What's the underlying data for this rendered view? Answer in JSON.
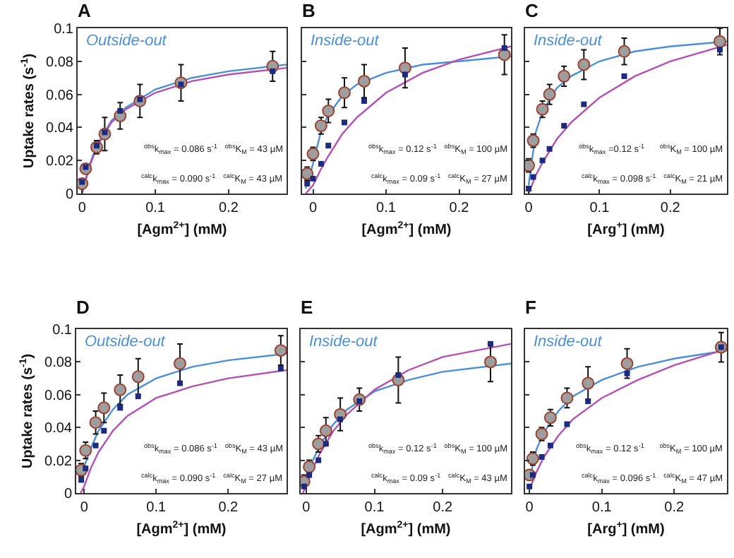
{
  "chart_data": [
    {
      "type": "scatter",
      "title": "A",
      "subtitle": "Outside-out",
      "xlabel": "[Agm$^{2+}$] (mM)",
      "ylabel": "Uptake rates (s$^{-1}$)",
      "annotations": [
        "$^{obs}$k$_{max}$ = 0.086 s$^{-1}$   $^{obs}$K$_{M}$ = 43 µM",
        "$^{calc}$k$_{max}$ = 0.090 s$^{-1}$   $^{calc}$K$_{M}$ = 43 µM"
      ],
      "xlim": [
        -0.006,
        0.279
      ],
      "ylim": [
        0,
        0.1
      ],
      "xticks": [
        0,
        0.1,
        0.2
      ],
      "yticks": [
        0,
        0.02,
        0.04,
        0.06,
        0.08,
        0.1
      ],
      "series": [
        {
          "type": "line",
          "color": "#4a90d9",
          "x": [
            0,
            0.01,
            0.02,
            0.04,
            0.06,
            0.1,
            0.15,
            0.2,
            0.279
          ],
          "values": [
            0,
            0.017,
            0.029,
            0.044,
            0.052,
            0.063,
            0.07,
            0.074,
            0.078
          ]
        },
        {
          "type": "line",
          "color": "#b44fb4",
          "x": [
            0,
            0.01,
            0.02,
            0.04,
            0.06,
            0.1,
            0.15,
            0.2,
            0.279
          ],
          "values": [
            0,
            0.016,
            0.028,
            0.043,
            0.051,
            0.061,
            0.068,
            0.072,
            0.076
          ]
        },
        {
          "type": "scatter",
          "marker": "square",
          "color": "#1c2a80",
          "x": [
            0,
            0.005,
            0.02,
            0.031,
            0.052,
            0.079,
            0.135,
            0.26
          ],
          "values": [
            0.007,
            0.016,
            0.029,
            0.037,
            0.05,
            0.057,
            0.066,
            0.074
          ]
        },
        {
          "type": "scatter",
          "marker": "circle",
          "color": "#9e9e9e",
          "x": [
            0,
            0.005,
            0.02,
            0.031,
            0.052,
            0.079,
            0.135,
            0.26
          ],
          "values": [
            0.006,
            0.015,
            0.028,
            0.036,
            0.047,
            0.056,
            0.067,
            0.077
          ],
          "errors": [
            0.003,
            0.003,
            0.004,
            0.01,
            0.008,
            0.01,
            0.011,
            0.009
          ]
        }
      ]
    },
    {
      "type": "scatter",
      "title": "B",
      "subtitle": "Inside-out",
      "xlabel": "[Agm$^{2+}$] (mM)",
      "annotations": [
        "$^{obs}$k$_{max}$ = 0.12 s$^{-1}$   $^{obs}$K$_{M}$ = 100 µM",
        "$^{calc}$k$_{max}$ = 0.09 s$^{-1}$   $^{calc}$K$_{M}$ = 27 µM"
      ],
      "xlim": [
        -0.015,
        0.271
      ],
      "ylim": [
        0,
        0.1
      ],
      "xticks": [
        0,
        0.1,
        0.2
      ],
      "yticks": [
        0,
        0.02,
        0.04,
        0.06,
        0.08,
        0.1
      ],
      "tick_labels": "x",
      "series": [
        {
          "type": "line",
          "color": "#4a90d9",
          "x": [
            -0.01,
            0,
            0.01,
            0.02,
            0.04,
            0.06,
            0.1,
            0.15,
            0.2,
            0.271
          ],
          "values": [
            0.003,
            0.018,
            0.036,
            0.047,
            0.059,
            0.066,
            0.073,
            0.078,
            0.08,
            0.083
          ]
        },
        {
          "type": "line",
          "color": "#b44fb4",
          "x": [
            -0.01,
            0,
            0.01,
            0.02,
            0.04,
            0.06,
            0.1,
            0.15,
            0.2,
            0.271
          ],
          "values": [
            0,
            0.005,
            0.014,
            0.022,
            0.036,
            0.046,
            0.061,
            0.073,
            0.081,
            0.089
          ]
        },
        {
          "type": "scatter",
          "marker": "square",
          "color": "#1c2a80",
          "x": [
            -0.008,
            0,
            0.011,
            0.021,
            0.043,
            0.07,
            0.126,
            0.262
          ],
          "values": [
            0.006,
            0.009,
            0.018,
            0.029,
            0.043,
            0.056,
            0.072,
            0.088
          ]
        },
        {
          "type": "scatter",
          "marker": "circle",
          "color": "#9e9e9e",
          "x": [
            -0.008,
            0,
            0.011,
            0.021,
            0.043,
            0.07,
            0.126,
            0.262
          ],
          "values": [
            0.012,
            0.024,
            0.041,
            0.05,
            0.061,
            0.068,
            0.076,
            0.084
          ],
          "errors": [
            0.004,
            0.004,
            0.005,
            0.007,
            0.009,
            0.01,
            0.012,
            0.012
          ]
        }
      ]
    },
    {
      "type": "scatter",
      "title": "C",
      "subtitle": "Inside-out",
      "xlabel": "[Arg$^{+}$] (mM)",
      "annotations": [
        "$^{obs}$k$_{max}$ =0.12 s$^{-1}$      $^{obs}$K$_{M}$ = 100 µM",
        "$^{calc}$k$_{max}$ = 0.098 s$^{-1}$   $^{calc}$K$_{M}$ = 21 µM"
      ],
      "xlim": [
        -0.005,
        0.28
      ],
      "ylim": [
        0,
        0.1
      ],
      "xticks": [
        0,
        0.1,
        0.2
      ],
      "yticks": [
        0,
        0.02,
        0.04,
        0.06,
        0.08,
        0.1
      ],
      "tick_labels": "x",
      "series": [
        {
          "type": "line",
          "color": "#4a90d9",
          "x": [
            0,
            0.01,
            0.02,
            0.04,
            0.06,
            0.1,
            0.15,
            0.2,
            0.28
          ],
          "values": [
            0.005,
            0.037,
            0.05,
            0.064,
            0.071,
            0.08,
            0.086,
            0.089,
            0.092
          ]
        },
        {
          "type": "line",
          "color": "#b44fb4",
          "x": [
            0,
            0.01,
            0.02,
            0.04,
            0.06,
            0.1,
            0.15,
            0.2,
            0.28
          ],
          "values": [
            0,
            0.011,
            0.019,
            0.033,
            0.043,
            0.058,
            0.071,
            0.08,
            0.09
          ]
        },
        {
          "type": "scatter",
          "marker": "square",
          "color": "#1c2a80",
          "x": [
            0,
            0.0065,
            0.0195,
            0.0295,
            0.05,
            0.078,
            0.135,
            0.27
          ],
          "values": [
            0.003,
            0.01,
            0.02,
            0.027,
            0.041,
            0.054,
            0.071,
            0.087
          ]
        },
        {
          "type": "scatter",
          "marker": "circle",
          "color": "#9e9e9e",
          "x": [
            0,
            0.0065,
            0.0195,
            0.0295,
            0.05,
            0.078,
            0.135,
            0.27
          ],
          "values": [
            0.017,
            0.032,
            0.051,
            0.06,
            0.071,
            0.078,
            0.086,
            0.092
          ],
          "errors": [
            0.004,
            0.004,
            0.005,
            0.006,
            0.006,
            0.009,
            0.008,
            0.008
          ]
        }
      ]
    },
    {
      "type": "scatter",
      "title": "D",
      "subtitle": "Outside-out",
      "xlabel": "[Agm$^{2+}$] (mM)",
      "ylabel": "Uptake rates (s$^{-1}$)",
      "annotations": [
        "$^{obs}$k$_{max}$ = 0.086 s$^{-1}$   $^{obs}$K$_{M}$ = 43 µM",
        "$^{calc}$k$_{max}$ = 0.090 s$^{-1}$   $^{calc}$K$_{M}$ = 27 µM"
      ],
      "xlim": [
        -0.011,
        0.281
      ],
      "ylim": [
        0,
        0.1
      ],
      "xticks": [
        0,
        0.1,
        0.2
      ],
      "yticks": [
        0,
        0.02,
        0.04,
        0.06,
        0.08,
        0.1
      ],
      "series": [
        {
          "type": "line",
          "color": "#4a90d9",
          "x": [
            -0.005,
            0,
            0.01,
            0.02,
            0.04,
            0.06,
            0.1,
            0.15,
            0.2,
            0.281
          ],
          "values": [
            0.008,
            0.016,
            0.028,
            0.038,
            0.051,
            0.06,
            0.07,
            0.077,
            0.081,
            0.085
          ]
        },
        {
          "type": "line",
          "color": "#b44fb4",
          "x": [
            -0.005,
            0,
            0.01,
            0.02,
            0.04,
            0.06,
            0.1,
            0.15,
            0.2,
            0.281
          ],
          "values": [
            0,
            0.004,
            0.016,
            0.025,
            0.038,
            0.047,
            0.058,
            0.065,
            0.07,
            0.075
          ]
        },
        {
          "type": "scatter",
          "marker": "square",
          "color": "#1c2a80",
          "x": [
            -0.004,
            0.002,
            0.016,
            0.0275,
            0.05,
            0.075,
            0.133,
            0.273
          ],
          "values": [
            0.008,
            0.015,
            0.029,
            0.038,
            0.052,
            0.059,
            0.067,
            0.076
          ]
        },
        {
          "type": "scatter",
          "marker": "circle",
          "color": "#9e9e9e",
          "x": [
            -0.004,
            0.002,
            0.016,
            0.0275,
            0.05,
            0.075,
            0.133,
            0.273
          ],
          "values": [
            0.014,
            0.026,
            0.043,
            0.052,
            0.063,
            0.071,
            0.079,
            0.087
          ],
          "errors": [
            0.004,
            0.005,
            0.007,
            0.009,
            0.009,
            0.011,
            0.012,
            0.009
          ]
        }
      ]
    },
    {
      "type": "scatter",
      "title": "E",
      "subtitle": "Inside-out",
      "xlabel": "[Agm$^{2+}$] (mM)",
      "annotations": [
        "$^{obs}$k$_{max}$ = 0.12 s$^{-1}$   $^{obs}$K$_{M}$ = 100 µM",
        "$^{calc}$k$_{max}$ = 0.09 s$^{-1}$   $^{calc}$K$_{M}$ = 43 µM"
      ],
      "xlim": [
        -0.008,
        0.3
      ],
      "ylim": [
        0,
        0.1
      ],
      "xticks": [
        0,
        0.1,
        0.2
      ],
      "yticks": [
        0,
        0.02,
        0.04,
        0.06,
        0.08,
        0.1
      ],
      "tick_labels": "x",
      "series": [
        {
          "type": "line",
          "color": "#4a90d9",
          "x": [
            -0.005,
            0,
            0.01,
            0.02,
            0.04,
            0.06,
            0.1,
            0.15,
            0.2,
            0.3
          ],
          "values": [
            0.003,
            0.008,
            0.02,
            0.029,
            0.042,
            0.051,
            0.062,
            0.069,
            0.074,
            0.079
          ]
        },
        {
          "type": "line",
          "color": "#b44fb4",
          "x": [
            -0.005,
            0,
            0.01,
            0.02,
            0.04,
            0.06,
            0.1,
            0.15,
            0.2,
            0.3
          ],
          "values": [
            0,
            0.004,
            0.015,
            0.024,
            0.038,
            0.048,
            0.063,
            0.075,
            0.083,
            0.091
          ]
        },
        {
          "type": "scatter",
          "marker": "square",
          "color": "#1c2a80",
          "x": [
            -0.003,
            0.0045,
            0.018,
            0.029,
            0.05,
            0.078,
            0.135,
            0.27
          ],
          "values": [
            0.004,
            0.011,
            0.02,
            0.03,
            0.045,
            0.056,
            0.072,
            0.091
          ]
        },
        {
          "type": "scatter",
          "marker": "circle",
          "color": "#9e9e9e",
          "x": [
            -0.003,
            0.0045,
            0.018,
            0.029,
            0.05,
            0.078,
            0.135,
            0.27
          ],
          "values": [
            0.007,
            0.016,
            0.03,
            0.038,
            0.048,
            0.057,
            0.069,
            0.08
          ],
          "errors": [
            0.004,
            0.004,
            0.005,
            0.008,
            0.01,
            0.007,
            0.014,
            0.012
          ]
        }
      ]
    },
    {
      "type": "scatter",
      "title": "F",
      "subtitle": "Inside-out",
      "xlabel": "[Arg$^{+}$] (mM)",
      "annotations": [
        "$^{obs}$k$_{max}$ = 0.12 s$^{-1}$      $^{obs}$K$_{M}$ = 100 µM",
        "$^{calc}$k$_{max}$ = 0.096 s$^{-1}$   $^{calc}$K$_{M}$ = 47 µM"
      ],
      "xlim": [
        -0.006,
        0.273
      ],
      "ylim": [
        0,
        0.1
      ],
      "xticks": [
        0,
        0.1,
        0.2
      ],
      "yticks": [
        0,
        0.02,
        0.04,
        0.06,
        0.08,
        0.1
      ],
      "tick_labels": "x",
      "series": [
        {
          "type": "line",
          "color": "#4a90d9",
          "x": [
            0,
            0.01,
            0.02,
            0.04,
            0.06,
            0.1,
            0.15,
            0.2,
            0.273
          ],
          "values": [
            0.008,
            0.027,
            0.037,
            0.05,
            0.059,
            0.069,
            0.077,
            0.082,
            0.087
          ]
        },
        {
          "type": "line",
          "color": "#b44fb4",
          "x": [
            0,
            0.01,
            0.02,
            0.04,
            0.06,
            0.1,
            0.15,
            0.2,
            0.273
          ],
          "values": [
            0.002,
            0.013,
            0.022,
            0.035,
            0.045,
            0.058,
            0.069,
            0.078,
            0.088
          ]
        },
        {
          "type": "scatter",
          "marker": "square",
          "color": "#1c2a80",
          "x": [
            0,
            0.0046,
            0.017,
            0.029,
            0.052,
            0.081,
            0.135,
            0.265
          ],
          "values": [
            0.004,
            0.011,
            0.022,
            0.029,
            0.042,
            0.056,
            0.073,
            0.089
          ]
        },
        {
          "type": "scatter",
          "marker": "circle",
          "color": "#9e9e9e",
          "x": [
            0,
            0.0046,
            0.017,
            0.029,
            0.052,
            0.081,
            0.135,
            0.265
          ],
          "values": [
            0.011,
            0.021,
            0.036,
            0.046,
            0.058,
            0.067,
            0.079,
            0.089
          ],
          "errors": [
            0.003,
            0.004,
            0.004,
            0.005,
            0.006,
            0.01,
            0.009,
            0.009
          ]
        }
      ]
    }
  ]
}
